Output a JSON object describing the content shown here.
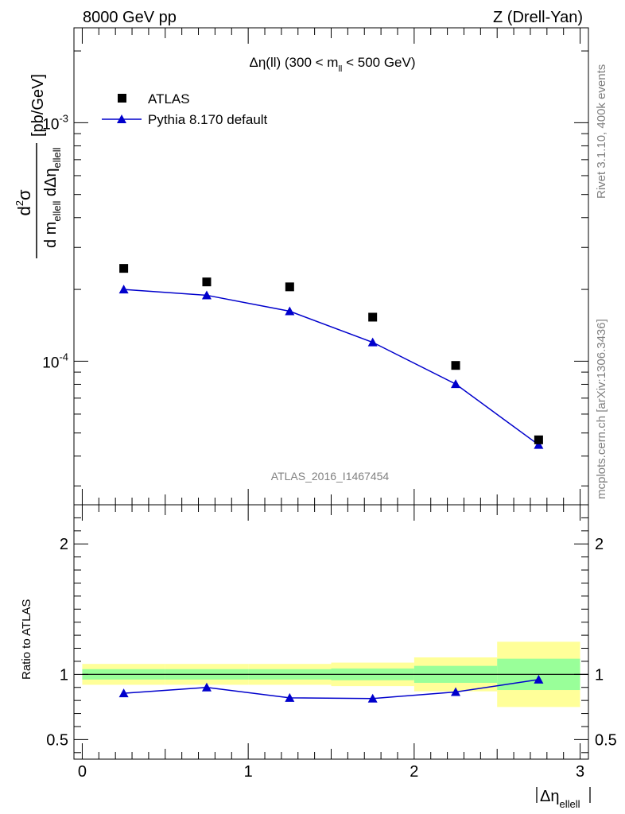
{
  "header": {
    "left": "8000 GeV pp",
    "right": "Z (Drell-Yan)"
  },
  "side": {
    "rivet": "Rivet 3.1.10,  400k events",
    "source": "mcplots.cern.ch [arXiv:1306.3436]"
  },
  "watermark": "ATLAS_2016_I1467454",
  "chart_data": [
    {
      "type": "scatter",
      "title": "Δη(ll) (300 < m_ll < 500 GeV)",
      "ylabel": "d²σ / d m_ellell dΔη_ellell [pb/GeV]",
      "xlabel": "|Δη_ellell|",
      "yscale": "log",
      "xlim": [
        -0.05,
        3.05
      ],
      "ylim": [
        2.5e-05,
        0.0025
      ],
      "yticks_major": [
        {
          "value": 0.0001,
          "label": "10^-4"
        },
        {
          "value": 0.001,
          "label": "10^-3"
        }
      ],
      "legend_position": "top-left",
      "series": [
        {
          "name": "ATLAS",
          "marker": "square",
          "color": "#000000",
          "x": [
            0.25,
            0.75,
            1.25,
            1.75,
            2.25,
            2.75
          ],
          "y": [
            0.000245,
            0.000215,
            0.000205,
            0.000153,
            9.6e-05,
            4.68e-05
          ]
        },
        {
          "name": "Pythia 8.170 default",
          "marker": "triangle",
          "line": true,
          "color": "#0000cc",
          "x": [
            0.25,
            0.75,
            1.25,
            1.75,
            2.25,
            2.75
          ],
          "y": [
            0.0002,
            0.000189,
            0.000162,
            0.00012,
            8.02e-05,
            4.46e-05
          ]
        }
      ]
    },
    {
      "type": "line",
      "ylabel": "Ratio to ATLAS",
      "xlabel": "|Δη_ellell|",
      "xlim": [
        -0.05,
        3.05
      ],
      "ylim": [
        0.35,
        2.3
      ],
      "xticks": [
        0,
        1,
        2,
        3
      ],
      "yticks": [
        0.5,
        1,
        2
      ],
      "reference_line": 1,
      "bands": [
        {
          "x0": 0.0,
          "x1": 0.5,
          "yellow": [
            0.92,
            1.08
          ],
          "green": [
            0.96,
            1.04
          ]
        },
        {
          "x0": 0.5,
          "x1": 1.0,
          "yellow": [
            0.92,
            1.08
          ],
          "green": [
            0.96,
            1.04
          ]
        },
        {
          "x0": 1.0,
          "x1": 1.5,
          "yellow": [
            0.92,
            1.08
          ],
          "green": [
            0.96,
            1.04
          ]
        },
        {
          "x0": 1.5,
          "x1": 2.0,
          "yellow": [
            0.91,
            1.09
          ],
          "green": [
            0.955,
            1.045
          ]
        },
        {
          "x0": 2.0,
          "x1": 2.5,
          "yellow": [
            0.87,
            1.13
          ],
          "green": [
            0.935,
            1.065
          ]
        },
        {
          "x0": 2.5,
          "x1": 3.0,
          "yellow": [
            0.75,
            1.25
          ],
          "green": [
            0.88,
            1.12
          ]
        }
      ],
      "series": [
        {
          "name": "Pythia 8.170 default",
          "color": "#0000cc",
          "x": [
            0.25,
            0.75,
            1.25,
            1.75,
            2.25,
            2.75
          ],
          "y": [
            0.855,
            0.9,
            0.82,
            0.815,
            0.865,
            0.96
          ]
        }
      ]
    }
  ]
}
